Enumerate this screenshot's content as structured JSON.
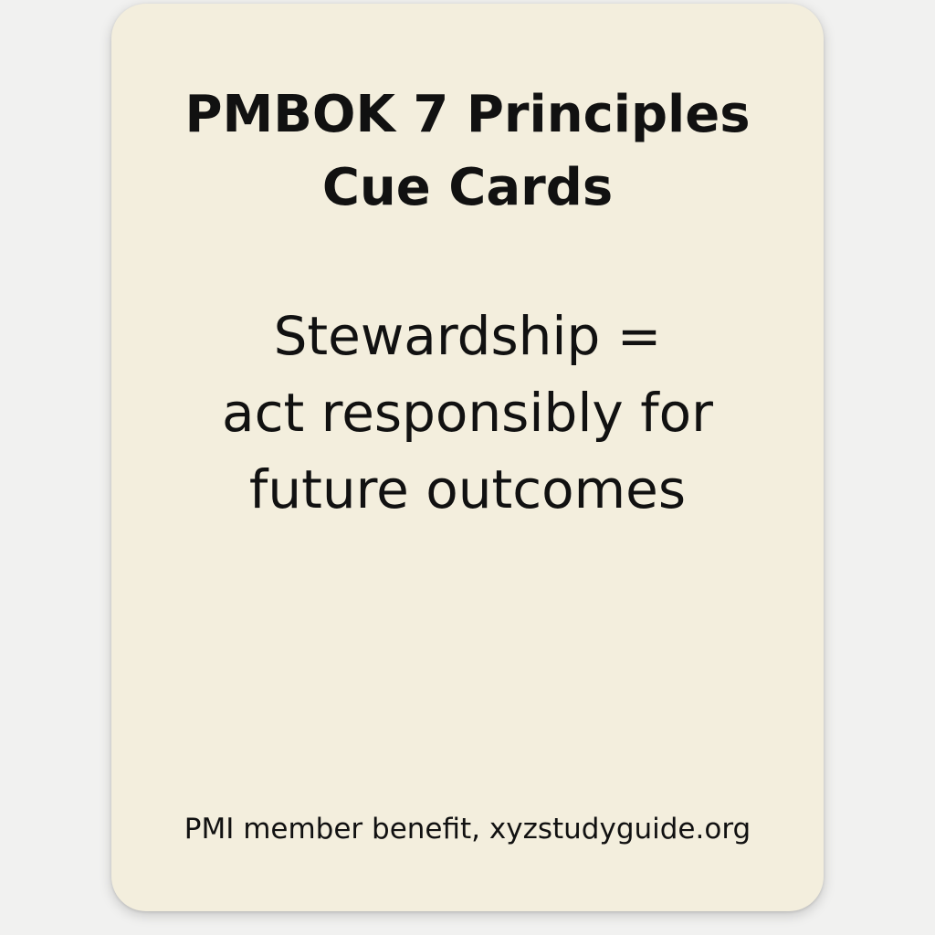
{
  "card": {
    "title_lines": [
      "PMBOK 7 Principles",
      "Cue Cards"
    ],
    "body_lines": [
      "Stewardship =",
      "act responsibly for",
      "future outcomes"
    ],
    "footer": "PMI member benefit, xyzstudyguide.org"
  },
  "colors": {
    "card_background": "#f3eedd",
    "page_background": "#f1f1f0",
    "text": "#111111"
  }
}
